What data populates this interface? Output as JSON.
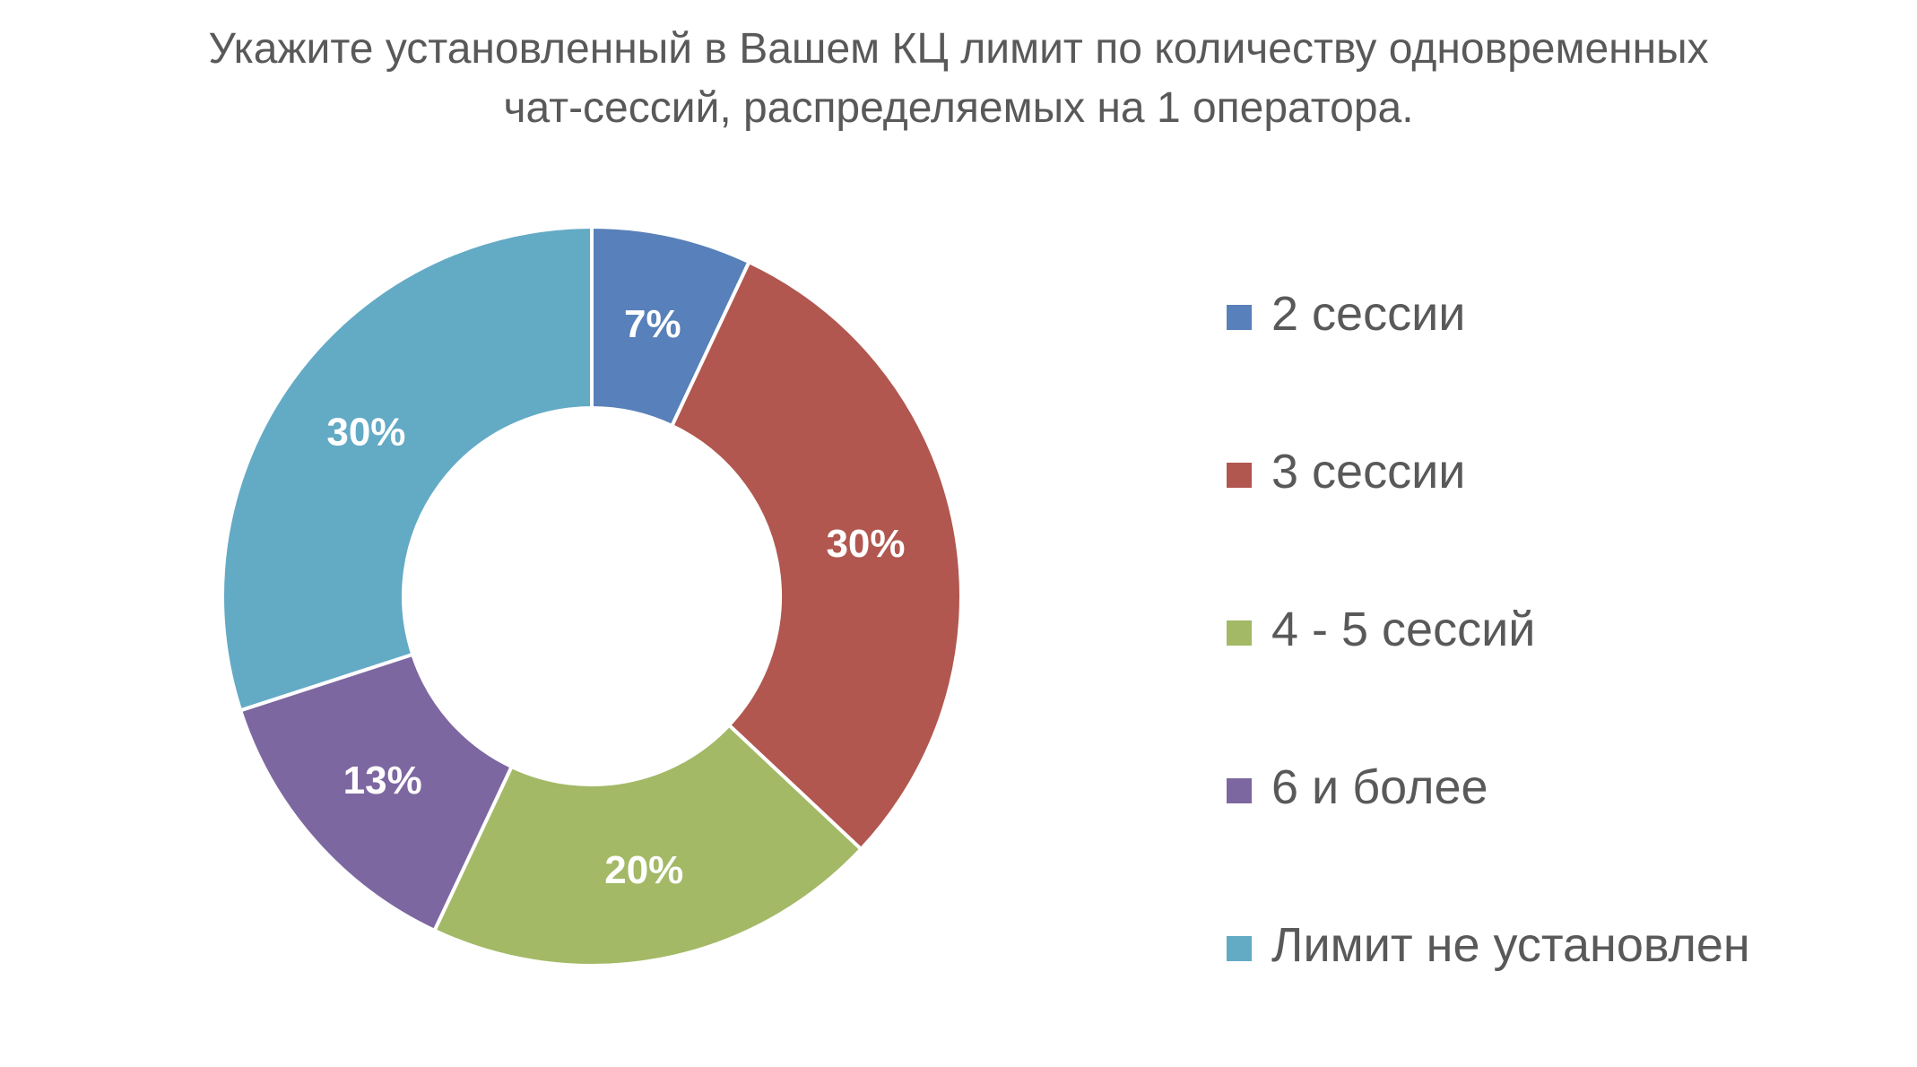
{
  "title_lines": [
    "Укажите установленный в Вашем КЦ лимит по количеству одновременных",
    "чат-сессий, распределяемых на 1 оператора."
  ],
  "chart_data": {
    "type": "pie",
    "style": "donut",
    "title": "Укажите установленный в Вашем КЦ лимит по количеству одновременных чат-сессий, распределяемых на 1 оператора.",
    "categories": [
      "2 сессии",
      "3 сессии",
      "4 - 5 сессий",
      "6 и более",
      "Лимит не установлен"
    ],
    "values": [
      7,
      30,
      20,
      13,
      30
    ],
    "data_labels": [
      "7%",
      "30%",
      "20%",
      "13%",
      "30%"
    ],
    "colors": [
      "#5880BA",
      "#B1574F",
      "#A3B966",
      "#7D67A0",
      "#63AAC5"
    ],
    "legend_position": "right"
  }
}
